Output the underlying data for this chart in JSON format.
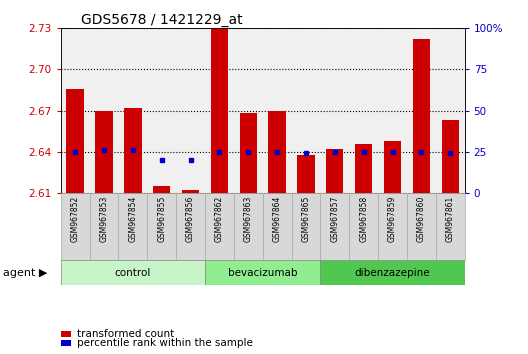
{
  "title": "GDS5678 / 1421229_at",
  "samples": [
    "GSM967852",
    "GSM967853",
    "GSM967854",
    "GSM967855",
    "GSM967856",
    "GSM967862",
    "GSM967863",
    "GSM967864",
    "GSM967865",
    "GSM967857",
    "GSM967858",
    "GSM967859",
    "GSM967860",
    "GSM967861"
  ],
  "transformed_count": [
    2.686,
    2.67,
    2.672,
    2.615,
    2.612,
    2.73,
    2.668,
    2.67,
    2.638,
    2.642,
    2.646,
    2.648,
    2.722,
    2.663
  ],
  "percentile_rank": [
    25,
    26,
    26,
    20,
    20,
    25,
    25,
    25,
    24,
    25,
    25,
    25,
    25,
    24
  ],
  "groups": [
    {
      "label": "control",
      "start": 0,
      "end": 5,
      "color": "#c8f5c8"
    },
    {
      "label": "bevacizumab",
      "start": 5,
      "end": 9,
      "color": "#90ee90"
    },
    {
      "label": "dibenzazepine",
      "start": 9,
      "end": 14,
      "color": "#50c850"
    }
  ],
  "bar_color": "#cc0000",
  "dot_color": "#0000cc",
  "ylim_left": [
    2.61,
    2.73
  ],
  "ylim_right": [
    0,
    100
  ],
  "yticks_left": [
    2.61,
    2.64,
    2.67,
    2.7,
    2.73
  ],
  "yticks_right": [
    0,
    25,
    50,
    75,
    100
  ],
  "ytick_labels_right": [
    "0",
    "25",
    "50",
    "75",
    "100%"
  ],
  "bar_width": 0.6,
  "legend_items": [
    {
      "label": "transformed count",
      "color": "#cc0000"
    },
    {
      "label": "percentile rank within the sample",
      "color": "#0000cc"
    }
  ],
  "plot_bg_color": "#f0f0f0",
  "left_tick_color": "#cc0000",
  "right_tick_color": "#0000cc",
  "sample_box_color": "#d8d8d8",
  "agent_label": "agent"
}
